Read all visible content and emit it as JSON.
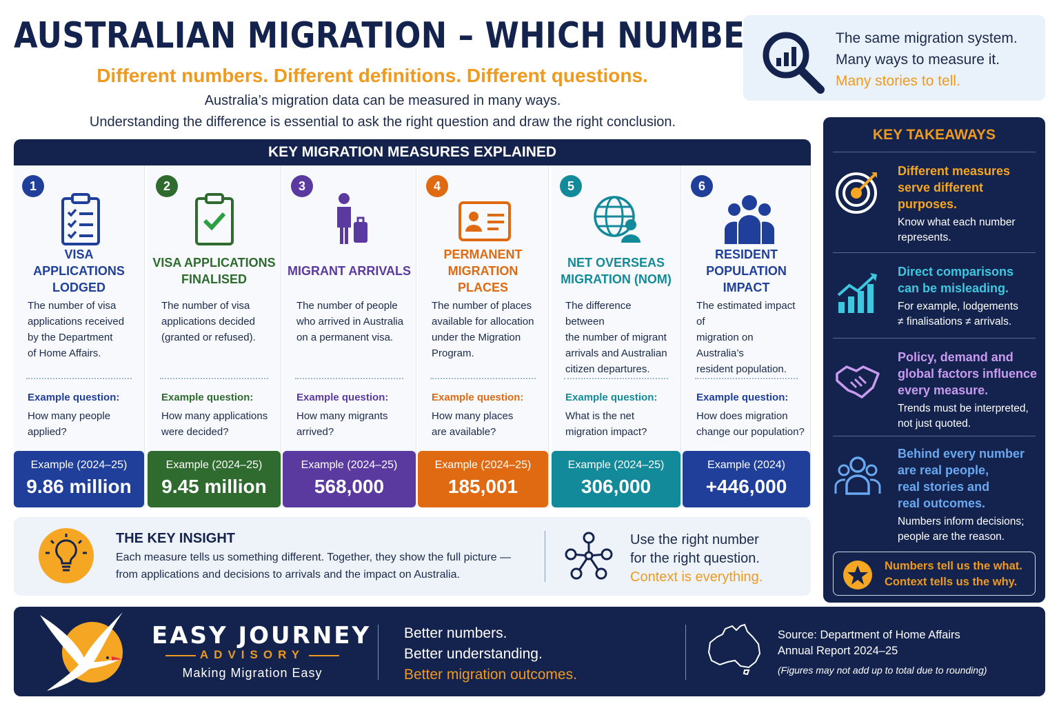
{
  "header": {
    "title": "AUSTRALIAN MIGRATION – WHICH NUMBER?",
    "subtitle": "Different numbers. Different definitions. Different questions.",
    "intro_line1": "Australia’s migration data can be measured in many ways.",
    "intro_line2": "Understanding the difference is essential to ask the right question and draw the right conclusion."
  },
  "callout": {
    "icon": "magnifier-chart-icon",
    "line1": "The same migration system.",
    "line2": "Many ways to measure it.",
    "line3": "Many stories to tell."
  },
  "measures": {
    "header": "KEY MIGRATION MEASURES EXPLAINED",
    "cards": [
      {
        "number": "1",
        "color": "#1f3f9b",
        "icon": "clipboard-checklist-icon",
        "title_line1": "VISA APPLICATIONS",
        "title_line2": "LODGED",
        "desc_lines": [
          "The number of visa",
          "applications received",
          "by the Department",
          "of Home Affairs."
        ],
        "question_label": "Example question:",
        "question_lines": [
          "How many people",
          "applied?"
        ],
        "example_label": "Example (2024–25)",
        "example_value": "9.86 million"
      },
      {
        "number": "2",
        "color": "#2f6b2e",
        "icon": "clipboard-check-icon",
        "title_line1": "VISA APPLICATIONS",
        "title_line2": "FINALISED",
        "desc_lines": [
          "The number of visa",
          "applications decided",
          "(granted or refused)."
        ],
        "question_label": "Example question:",
        "question_lines": [
          "How many applications",
          "were decided?"
        ],
        "example_label": "Example (2024–25)",
        "example_value": "9.45 million"
      },
      {
        "number": "3",
        "color": "#5b3aa0",
        "icon": "traveller-luggage-icon",
        "title_line1": "MIGRANT ARRIVALS",
        "title_line2": "",
        "desc_lines": [
          "The number of people",
          "who arrived in Australia",
          "on a permanent visa."
        ],
        "question_label": "Example question:",
        "question_lines": [
          "How many migrants",
          "arrived?"
        ],
        "example_label": "Example (2024–25)",
        "example_value": "568,000"
      },
      {
        "number": "4",
        "color": "#e06a12",
        "icon": "id-card-icon",
        "title_line1": "PERMANENT",
        "title_line2": "MIGRATION PLACES",
        "desc_lines": [
          "The number of places",
          "available for allocation",
          "under the Migration",
          "Program."
        ],
        "question_label": "Example question:",
        "question_lines": [
          "How many places",
          "are available?"
        ],
        "example_label": "Example (2024–25)",
        "example_value": "185,001"
      },
      {
        "number": "5",
        "color": "#138a9a",
        "icon": "globe-person-icon",
        "title_line1": "NET OVERSEAS",
        "title_line2": "MIGRATION (NOM)",
        "desc_lines": [
          "The difference between",
          "the number of migrant",
          "arrivals and Australian",
          "citizen departures."
        ],
        "question_label": "Example question:",
        "question_lines": [
          "What is the net",
          "migration impact?"
        ],
        "example_label": "Example (2024–25)",
        "example_value": "306,000"
      },
      {
        "number": "6",
        "color": "#1f3f9b",
        "icon": "people-group-icon",
        "title_line1": "RESIDENT",
        "title_line2": "POPULATION IMPACT",
        "desc_lines": [
          "The estimated impact of",
          "migration on Australia’s",
          "resident population."
        ],
        "question_label": "Example question:",
        "question_lines": [
          "How does migration",
          "change our population?"
        ],
        "example_label": "Example (2024)",
        "example_value": "+446,000"
      }
    ]
  },
  "insight": {
    "icon": "lightbulb-icon",
    "title": "THE KEY INSIGHT",
    "text_line1": "Each measure tells us something different. Together, they show the full picture —",
    "text_line2": "from applications and decisions to arrivals and the impact on Australia.",
    "network_icon": "network-nodes-icon",
    "right_line1": "Use the right number",
    "right_line2": "for the right question.",
    "right_line3": "Context is everything."
  },
  "takeaways": {
    "header": "KEY TAKEAWAYS",
    "items": [
      {
        "icon": "target-arrow-icon",
        "color": "#f5a623",
        "heading_lines": [
          "Different measures",
          "serve different",
          "purposes."
        ],
        "body_lines": [
          "Know what each number",
          "represents."
        ]
      },
      {
        "icon": "growth-chart-icon",
        "color": "#3fc7e0",
        "heading_lines": [
          "Direct comparisons",
          "can be misleading."
        ],
        "body_lines": [
          "For example, lodgements",
          "≠ finalisations ≠ arrivals."
        ]
      },
      {
        "icon": "handshake-icon",
        "color": "#c89af0",
        "heading_lines": [
          "Policy, demand and",
          "global factors influence",
          "every measure."
        ],
        "body_lines": [
          "Trends must be interpreted,",
          "not just quoted."
        ]
      },
      {
        "icon": "people-outline-icon",
        "color": "#6aa8f0",
        "heading_lines": [
          "Behind every number",
          "are real people,",
          "real stories and",
          "real outcomes."
        ],
        "body_lines": [
          "Numbers inform decisions;",
          "people are the reason."
        ]
      }
    ],
    "closing_icon": "star-badge-icon",
    "closing_line1": "Numbers tell us the what.",
    "closing_line2": "Context tells us the why."
  },
  "footer": {
    "logo_icon": "tern-bird-logo",
    "brand_name": "EASY JOURNEY",
    "brand_sub": "ADVISORY",
    "brand_tagline": "Making Migration Easy",
    "tag_line1": "Better numbers.",
    "tag_line2": "Better understanding.",
    "tag_line3": "Better migration outcomes.",
    "map_icon": "australia-map-icon",
    "source_line1": "Source: Department of Home Affairs",
    "source_line2": "Annual Report 2024–25",
    "note": "(Figures may not add up to total due to rounding)"
  },
  "colors": {
    "navy": "#13234d",
    "accent_orange": "#ef9a1f"
  }
}
